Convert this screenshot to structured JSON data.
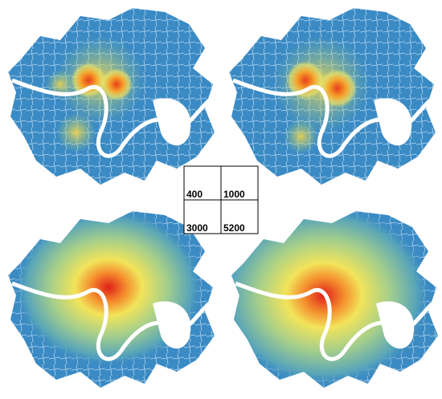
{
  "key": {
    "cells": [
      "400",
      "1000",
      "3000",
      "5200"
    ]
  }
}
